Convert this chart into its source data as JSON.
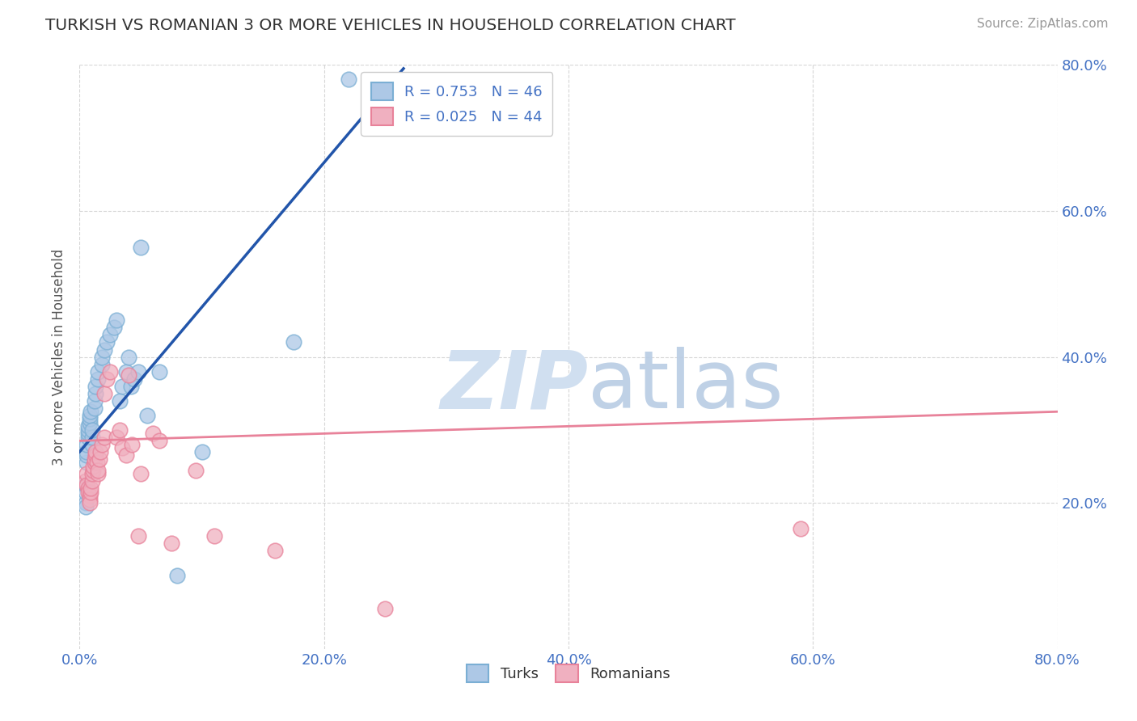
{
  "title": "TURKISH VS ROMANIAN 3 OR MORE VEHICLES IN HOUSEHOLD CORRELATION CHART",
  "source_text": "Source: ZipAtlas.com",
  "ylabel": "3 or more Vehicles in Household",
  "xlabel": "",
  "xlim": [
    0.0,
    0.8
  ],
  "ylim": [
    0.0,
    0.8
  ],
  "xtick_labels": [
    "0.0%",
    "20.0%",
    "40.0%",
    "60.0%",
    "80.0%"
  ],
  "xtick_vals": [
    0.0,
    0.2,
    0.4,
    0.6,
    0.8
  ],
  "ytick_labels_right": [
    "20.0%",
    "40.0%",
    "60.0%",
    "80.0%"
  ],
  "ytick_vals_right": [
    0.2,
    0.4,
    0.6,
    0.8
  ],
  "legend_entries": [
    {
      "label": "R = 0.753   N = 46",
      "color": "#a8c4e0"
    },
    {
      "label": "R = 0.025   N = 44",
      "color": "#f0a8b8"
    }
  ],
  "turks_scatter": [
    [
      0.005,
      0.2
    ],
    [
      0.005,
      0.195
    ],
    [
      0.005,
      0.215
    ],
    [
      0.005,
      0.225
    ],
    [
      0.006,
      0.255
    ],
    [
      0.006,
      0.265
    ],
    [
      0.006,
      0.27
    ],
    [
      0.006,
      0.28
    ],
    [
      0.007,
      0.29
    ],
    [
      0.007,
      0.295
    ],
    [
      0.007,
      0.3
    ],
    [
      0.007,
      0.305
    ],
    [
      0.008,
      0.31
    ],
    [
      0.008,
      0.315
    ],
    [
      0.008,
      0.32
    ],
    [
      0.009,
      0.325
    ],
    [
      0.01,
      0.28
    ],
    [
      0.01,
      0.29
    ],
    [
      0.01,
      0.3
    ],
    [
      0.012,
      0.33
    ],
    [
      0.012,
      0.34
    ],
    [
      0.013,
      0.35
    ],
    [
      0.013,
      0.36
    ],
    [
      0.015,
      0.37
    ],
    [
      0.015,
      0.38
    ],
    [
      0.018,
      0.39
    ],
    [
      0.018,
      0.4
    ],
    [
      0.02,
      0.41
    ],
    [
      0.022,
      0.42
    ],
    [
      0.025,
      0.43
    ],
    [
      0.028,
      0.44
    ],
    [
      0.03,
      0.45
    ],
    [
      0.033,
      0.34
    ],
    [
      0.035,
      0.36
    ],
    [
      0.038,
      0.38
    ],
    [
      0.04,
      0.4
    ],
    [
      0.042,
      0.36
    ],
    [
      0.045,
      0.37
    ],
    [
      0.048,
      0.38
    ],
    [
      0.05,
      0.55
    ],
    [
      0.055,
      0.32
    ],
    [
      0.065,
      0.38
    ],
    [
      0.08,
      0.1
    ],
    [
      0.1,
      0.27
    ],
    [
      0.175,
      0.42
    ],
    [
      0.22,
      0.78
    ]
  ],
  "romanians_scatter": [
    [
      0.005,
      0.23
    ],
    [
      0.006,
      0.24
    ],
    [
      0.006,
      0.225
    ],
    [
      0.007,
      0.22
    ],
    [
      0.007,
      0.215
    ],
    [
      0.008,
      0.21
    ],
    [
      0.008,
      0.205
    ],
    [
      0.008,
      0.2
    ],
    [
      0.009,
      0.215
    ],
    [
      0.009,
      0.22
    ],
    [
      0.01,
      0.23
    ],
    [
      0.01,
      0.24
    ],
    [
      0.011,
      0.245
    ],
    [
      0.011,
      0.25
    ],
    [
      0.012,
      0.255
    ],
    [
      0.012,
      0.26
    ],
    [
      0.013,
      0.265
    ],
    [
      0.013,
      0.27
    ],
    [
      0.014,
      0.255
    ],
    [
      0.015,
      0.24
    ],
    [
      0.015,
      0.245
    ],
    [
      0.016,
      0.26
    ],
    [
      0.017,
      0.27
    ],
    [
      0.018,
      0.28
    ],
    [
      0.02,
      0.29
    ],
    [
      0.02,
      0.35
    ],
    [
      0.022,
      0.37
    ],
    [
      0.025,
      0.38
    ],
    [
      0.03,
      0.29
    ],
    [
      0.033,
      0.3
    ],
    [
      0.035,
      0.275
    ],
    [
      0.038,
      0.265
    ],
    [
      0.04,
      0.375
    ],
    [
      0.043,
      0.28
    ],
    [
      0.048,
      0.155
    ],
    [
      0.05,
      0.24
    ],
    [
      0.06,
      0.295
    ],
    [
      0.065,
      0.285
    ],
    [
      0.075,
      0.145
    ],
    [
      0.095,
      0.245
    ],
    [
      0.11,
      0.155
    ],
    [
      0.16,
      0.135
    ],
    [
      0.25,
      0.055
    ],
    [
      0.59,
      0.165
    ]
  ],
  "blue_line": [
    [
      0.0,
      0.27
    ],
    [
      0.265,
      0.795
    ]
  ],
  "pink_line": [
    [
      0.0,
      0.285
    ],
    [
      0.8,
      0.325
    ]
  ],
  "turks_color": "#7bafd4",
  "turks_color_fill": "#adc8e6",
  "romanians_color": "#e8829a",
  "romanians_color_fill": "#f0b0c0",
  "blue_line_color": "#2255aa",
  "pink_line_color": "#e8829a",
  "watermark_zip_color": "#d0dff0",
  "watermark_atlas_color": "#b8cce4",
  "background_color": "#ffffff",
  "grid_color": "#cccccc"
}
